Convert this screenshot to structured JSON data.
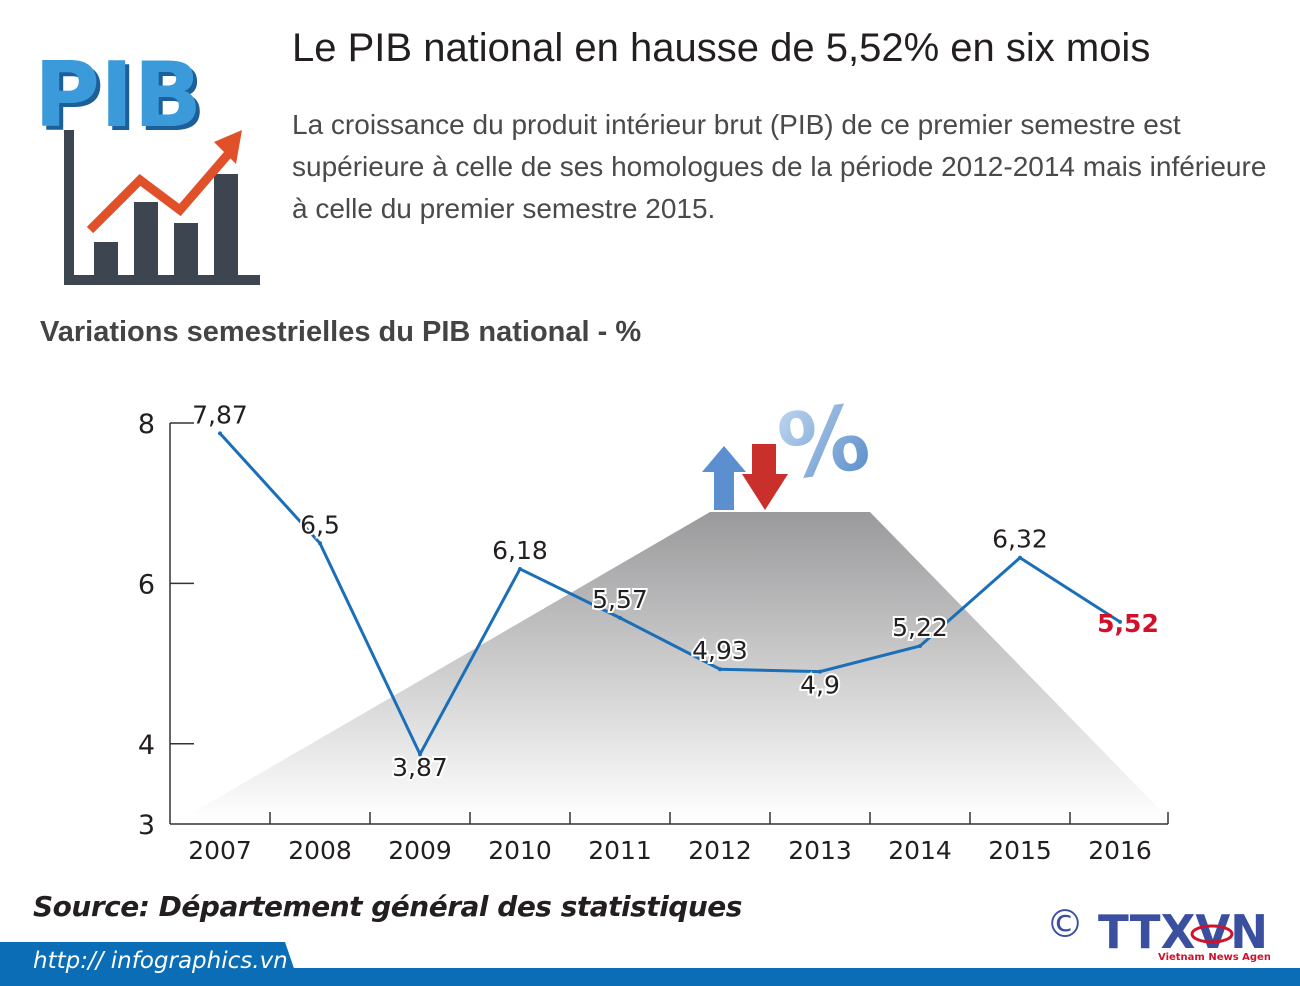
{
  "header": {
    "logo_text": "PIB",
    "title": "Le PIB national en hausse de 5,52% en six mois",
    "subtitle": "La croissance du produit intérieur brut (PIB) de ce premier semestre est supérieure à celle de ses homologues de la période 2012-2014 mais inférieure à celle du premier semestre 2015."
  },
  "chart_data": {
    "type": "line",
    "title": "Variations semestrielles du PIB national - %",
    "categories": [
      "2007",
      "2008",
      "2009",
      "2010",
      "2011",
      "2012",
      "2013",
      "2014",
      "2015",
      "2016"
    ],
    "series": [
      {
        "values": [
          7.87,
          6.5,
          3.87,
          6.18,
          5.57,
          4.93,
          4.9,
          5.22,
          6.32,
          5.52
        ]
      }
    ],
    "data_labels": [
      "7,87",
      "6,5",
      "3,87",
      "6,18",
      "5,57",
      "4,93",
      "4,9",
      "5,22",
      "6,32",
      "5,52"
    ],
    "highlight_index": 9,
    "ylim": [
      3,
      8
    ],
    "yticks": [
      "3",
      "4",
      "6",
      "8"
    ],
    "ytick_values": [
      3,
      4,
      6,
      8
    ],
    "grid": false,
    "colors": {
      "line": "#1a6fb8",
      "highlight_label": "#d0112b",
      "text": "#231f20"
    }
  },
  "footer": {
    "source": "Source: Département général des statistiques",
    "url": "http:// infographics.vn",
    "copyright_symbol": "©",
    "agency_logo": "TTXVN",
    "agency_name": "Vietnam News Agency"
  }
}
